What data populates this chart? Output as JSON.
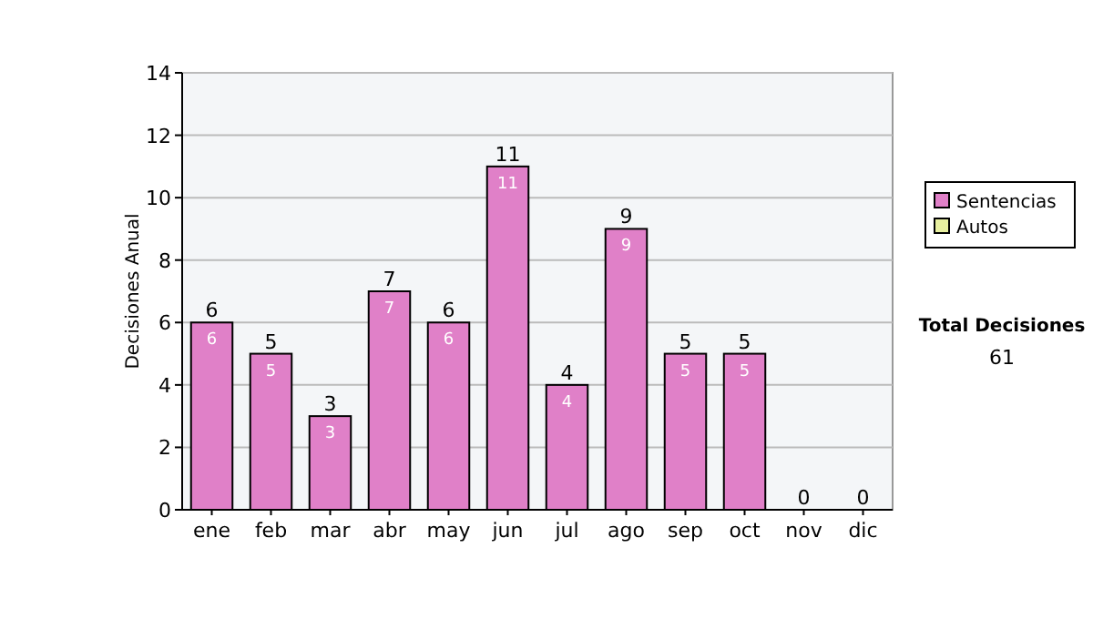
{
  "chart_data": {
    "type": "bar",
    "stacked": true,
    "ylabel": "Decisiones Anual",
    "categories": [
      "ene",
      "feb",
      "mar",
      "abr",
      "may",
      "jun",
      "jul",
      "ago",
      "sep",
      "oct",
      "nov",
      "dic"
    ],
    "series": [
      {
        "name": "Sentencias",
        "color": "#e080c8",
        "values": [
          6,
          5,
          3,
          7,
          6,
          11,
          4,
          9,
          5,
          5,
          0,
          0
        ],
        "value_labels": [
          "6",
          "5",
          "3",
          "7",
          "6",
          "11",
          "4",
          "9",
          "5",
          "5",
          null,
          null
        ]
      },
      {
        "name": "Autos",
        "color": "#e8f0a0",
        "values": [
          0,
          0,
          0,
          0,
          0,
          0,
          0,
          0,
          0,
          0,
          0,
          0
        ]
      }
    ],
    "totals": [
      "6",
      "5",
      "3",
      "7",
      "6",
      "11",
      "4",
      "9",
      "5",
      "5",
      "0",
      "0"
    ],
    "ylim": [
      0,
      14
    ],
    "yticks": [
      0,
      2,
      4,
      6,
      8,
      10,
      12,
      14
    ],
    "grid": "y",
    "legend": "right",
    "annotations": [
      "Total Decisiones",
      "61"
    ]
  }
}
